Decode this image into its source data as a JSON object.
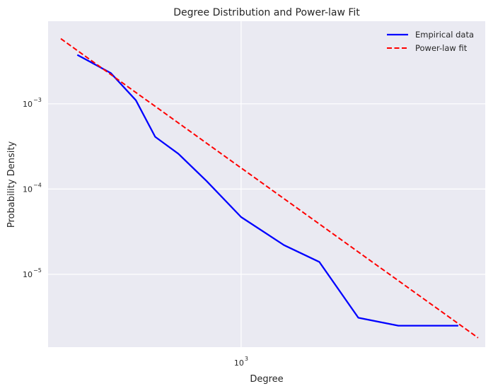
{
  "chart_data": {
    "type": "line",
    "title": "Degree Distribution and Power-law Fit",
    "xlabel": "Degree",
    "ylabel": "Probability Density",
    "xscale": "log",
    "yscale": "log",
    "xlim": [
      380,
      3400
    ],
    "ylim": [
      1.4e-06,
      0.0093
    ],
    "grid": true,
    "legend_position": "top-right",
    "x_ticks": [
      {
        "value": 1000,
        "base": "10",
        "exp": "3"
      }
    ],
    "y_ticks": [
      {
        "value": 1e-05,
        "base": "10",
        "exp": "−5"
      },
      {
        "value": 0.0001,
        "base": "10",
        "exp": "−4"
      },
      {
        "value": 0.001,
        "base": "10",
        "exp": "−3"
      }
    ],
    "series": [
      {
        "name": "Empirical data",
        "color": "#0000ff",
        "style": "solid",
        "x": [
          440,
          520,
          590,
          650,
          730,
          840,
          1000,
          1240,
          1480,
          1800,
          2200,
          2500,
          2970
        ],
        "y": [
          0.00375,
          0.0023,
          0.0011,
          0.00041,
          0.00026,
          0.000125,
          4.7e-05,
          2.2e-05,
          1.4e-05,
          3.1e-06,
          2.5e-06,
          2.5e-06,
          2.5e-06
        ]
      },
      {
        "name": "Power-law fit",
        "color": "#ff0000",
        "style": "dashed",
        "x": [
          405,
          3280
        ],
        "y": [
          0.0058,
          1.8e-06
        ]
      }
    ]
  }
}
